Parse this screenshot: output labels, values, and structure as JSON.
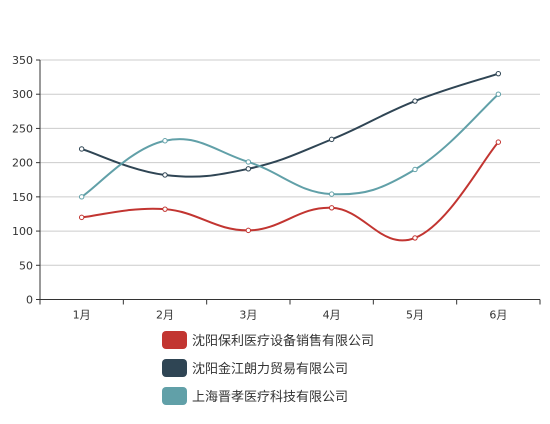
{
  "chart_data": {
    "type": "line",
    "title": "",
    "xlabel": "",
    "ylabel": "",
    "categories": [
      "1月",
      "2月",
      "3月",
      "4月",
      "5月",
      "6月"
    ],
    "ylim": [
      0,
      350
    ],
    "yticks": [
      0,
      50,
      100,
      150,
      200,
      250,
      300,
      350
    ],
    "grid": true,
    "smooth": true,
    "legend_position": "bottom",
    "series": [
      {
        "name": "沈阳保利医疗设备销售有限公司",
        "color": "#c23531",
        "values": [
          120,
          132,
          101,
          134,
          90,
          230
        ]
      },
      {
        "name": "沈阳金江朗力贸易有限公司",
        "color": "#2f4554",
        "values": [
          220,
          182,
          191,
          234,
          290,
          330
        ]
      },
      {
        "name": "上海晋孝医疗科技有限公司",
        "color": "#61a0a8",
        "values": [
          150,
          232,
          201,
          154,
          190,
          300
        ]
      }
    ]
  }
}
